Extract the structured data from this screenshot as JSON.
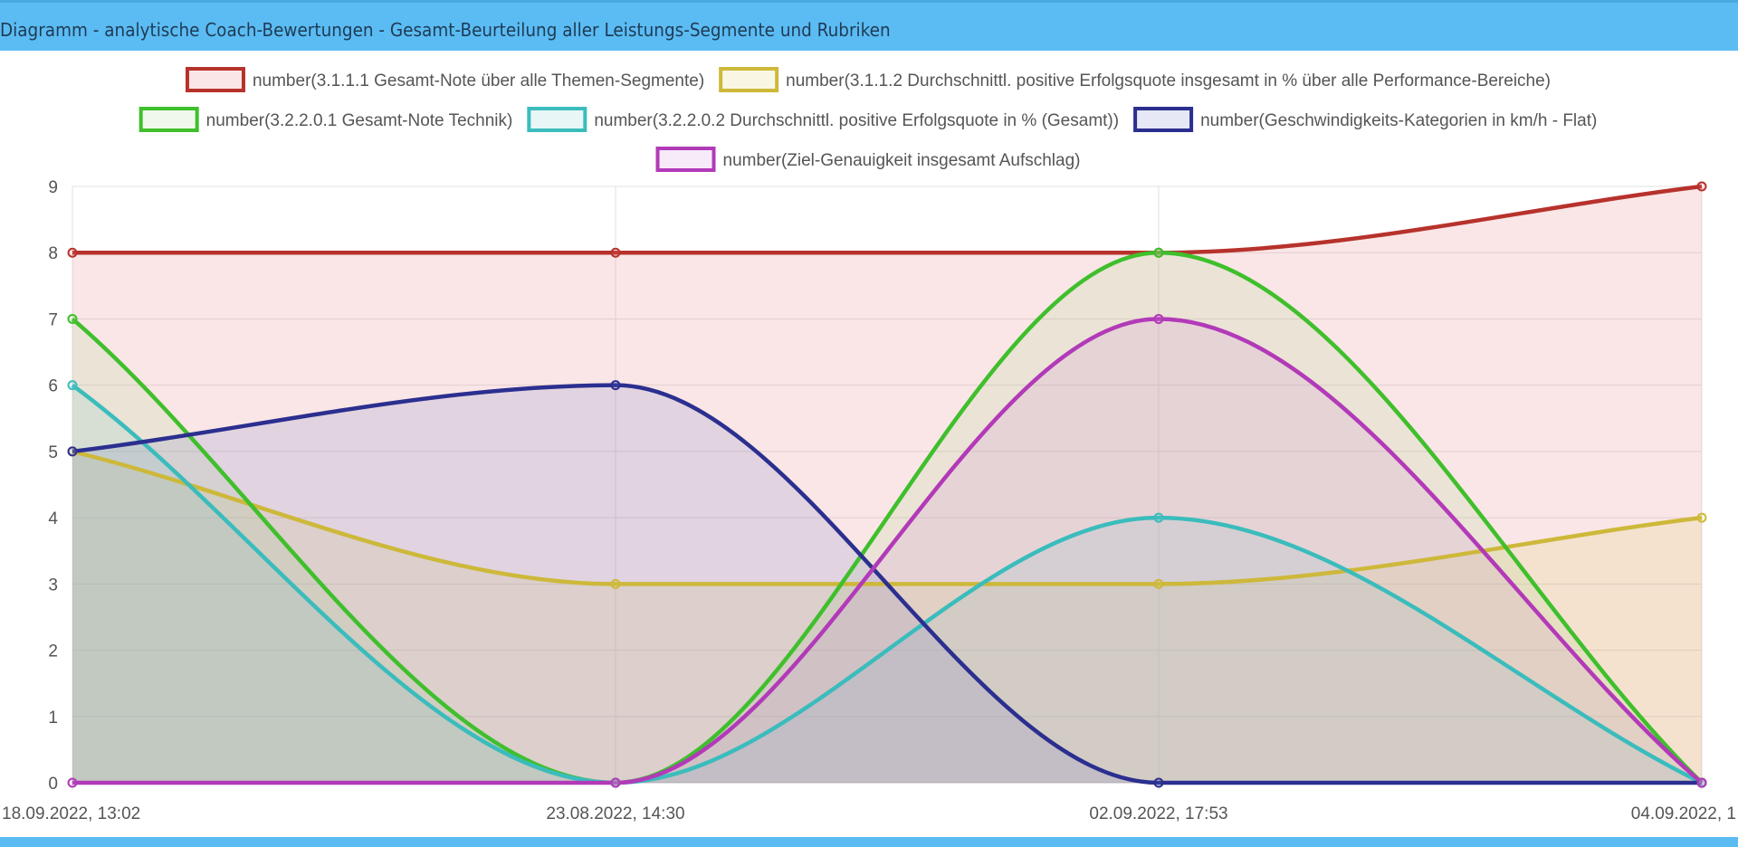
{
  "header": {
    "title": "Diagramm - analytische Coach-Bewertungen - Gesamt-Beurteilung aller Leistungs-Segmente und Rubriken"
  },
  "chart_data": {
    "type": "area",
    "categories": [
      "18.09.2022, 13:02",
      "23.08.2022, 14:30",
      "02.09.2022, 17:53",
      "04.09.2022, 1"
    ],
    "ylim": [
      0,
      9
    ],
    "yticks": [
      0,
      1,
      2,
      3,
      4,
      5,
      6,
      7,
      8,
      9
    ],
    "grid": true,
    "legend_position": "top",
    "series": [
      {
        "name": "number(3.1.1.1 Gesamt-Note über alle Themen-Segmente)",
        "values": [
          8,
          8,
          8,
          9
        ],
        "color": "#b7322c",
        "fill": "rgba(226,115,115,0.18)"
      },
      {
        "name": "number(3.1.1.2  Durchschnittl. positive Erfolgsquote insgesamt in % über alle Performance-Bereiche)",
        "values": [
          5,
          3,
          3,
          4
        ],
        "color": "#cdb83a",
        "fill": "rgba(215,205,90,0.16)"
      },
      {
        "name": "number(3.2.2.0.1   Gesamt-Note Technik)",
        "values": [
          7,
          0,
          8,
          0
        ],
        "color": "#3fbf2c",
        "fill": "rgba(160,210,130,0.16)"
      },
      {
        "name": "number(3.2.2.0.2  Durchschnittl. positive Erfolgsquote in % (Gesamt))",
        "values": [
          6,
          0,
          4,
          0
        ],
        "color": "#3bbcbc",
        "fill": "rgba(110,200,200,0.16)"
      },
      {
        "name": "number(Geschwindigkeits-Kategorien in km/h - Flat)",
        "values": [
          5,
          6,
          0,
          0
        ],
        "color": "#2b2f8f",
        "fill": "rgba(100,110,190,0.16)"
      },
      {
        "name": "number(Ziel-Genauigkeit insgesamt Aufschlag)",
        "values": [
          0,
          0,
          7,
          0
        ],
        "color": "#b23ab8",
        "fill": "rgba(205,130,215,0.16)"
      }
    ]
  }
}
